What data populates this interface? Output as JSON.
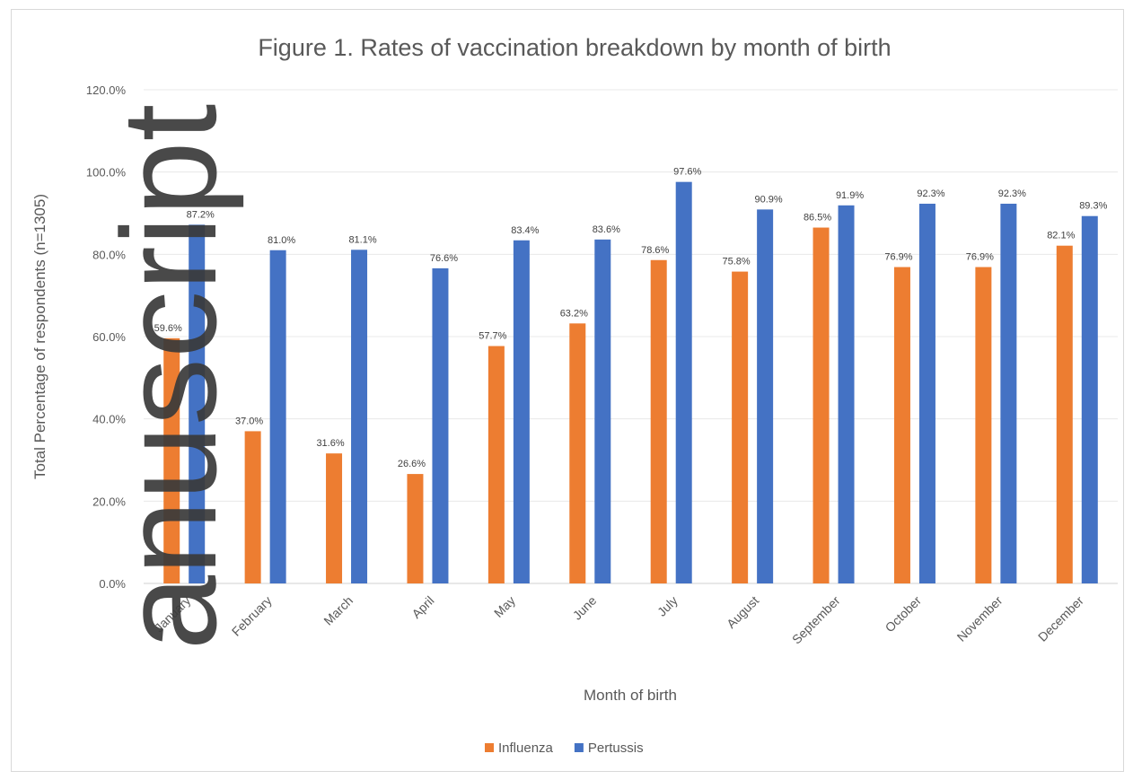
{
  "chart_data": {
    "type": "bar",
    "title": "Figure 1. Rates of vaccination breakdown by month of birth",
    "xlabel": "Month of birth",
    "ylabel": "Total Percentage of respondents (n=1305)",
    "ylim": [
      0,
      120
    ],
    "yticks": [
      "0.0%",
      "20.0%",
      "40.0%",
      "60.0%",
      "80.0%",
      "100.0%",
      "120.0%"
    ],
    "grid": true,
    "legend_position": "bottom",
    "categories": [
      "January",
      "February",
      "March",
      "April",
      "May",
      "June",
      "July",
      "August",
      "September",
      "October",
      "November",
      "December"
    ],
    "series": [
      {
        "name": "Influenza",
        "color": "#ed7d31",
        "values": [
          59.6,
          37.0,
          31.6,
          26.6,
          57.7,
          63.2,
          78.6,
          75.8,
          86.5,
          76.9,
          76.9,
          82.1
        ],
        "labels": [
          "59.6%",
          "37.0%",
          "31.6%",
          "26.6%",
          "57.7%",
          "63.2%",
          "78.6%",
          "75.8%",
          "86.5%",
          "76.9%",
          "76.9%",
          "82.1%"
        ]
      },
      {
        "name": "Pertussis",
        "color": "#4472c4",
        "values": [
          87.2,
          81.0,
          81.1,
          76.6,
          83.4,
          83.6,
          97.6,
          90.9,
          91.9,
          92.3,
          92.3,
          89.3
        ],
        "labels": [
          "87.2%",
          "81.0%",
          "81.1%",
          "76.6%",
          "83.4%",
          "83.6%",
          "97.6%",
          "90.9%",
          "91.9%",
          "92.3%",
          "92.3%",
          "89.3%"
        ]
      }
    ]
  },
  "watermark": {
    "text": "anuscript"
  }
}
